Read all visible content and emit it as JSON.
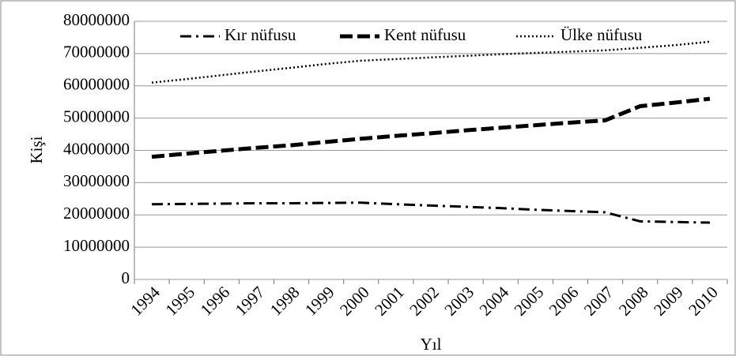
{
  "chart_data": {
    "type": "line",
    "xlabel": "Yıl",
    "ylabel": "Kişi",
    "categories": [
      "1994",
      "1995",
      "1996",
      "1997",
      "1998",
      "1999",
      "2000",
      "2001",
      "2002",
      "2003",
      "2004",
      "2005",
      "2006",
      "2007",
      "2008",
      "2009",
      "2010"
    ],
    "series": [
      {
        "name": "Kır nüfusu",
        "color": "#000000",
        "dash": "dashdot",
        "values": [
          23300000,
          23400000,
          23500000,
          23600000,
          23600000,
          23700000,
          23800000,
          23300000,
          22900000,
          22500000,
          22100000,
          21600000,
          21200000,
          20800000,
          18000000,
          17800000,
          17600000
        ]
      },
      {
        "name": "Kent nüfusu",
        "color": "#000000",
        "dash": "dashed",
        "values": [
          38000000,
          39000000,
          39900000,
          40800000,
          41600000,
          42600000,
          43600000,
          44500000,
          45300000,
          46200000,
          47000000,
          47800000,
          48600000,
          49300000,
          53700000,
          54800000,
          56000000
        ]
      },
      {
        "name": "Ülke nüfusu",
        "color": "#000000",
        "dash": "dotted",
        "values": [
          61000000,
          62100000,
          63300000,
          64500000,
          65600000,
          66800000,
          67800000,
          68300000,
          68800000,
          69300000,
          69800000,
          70200000,
          70600000,
          71000000,
          71800000,
          72600000,
          73700000
        ]
      }
    ],
    "ylim": [
      0,
      80000000
    ],
    "yticks": [
      0,
      10000000,
      20000000,
      30000000,
      40000000,
      50000000,
      60000000,
      70000000,
      80000000
    ],
    "grid": true,
    "legend": "top"
  }
}
